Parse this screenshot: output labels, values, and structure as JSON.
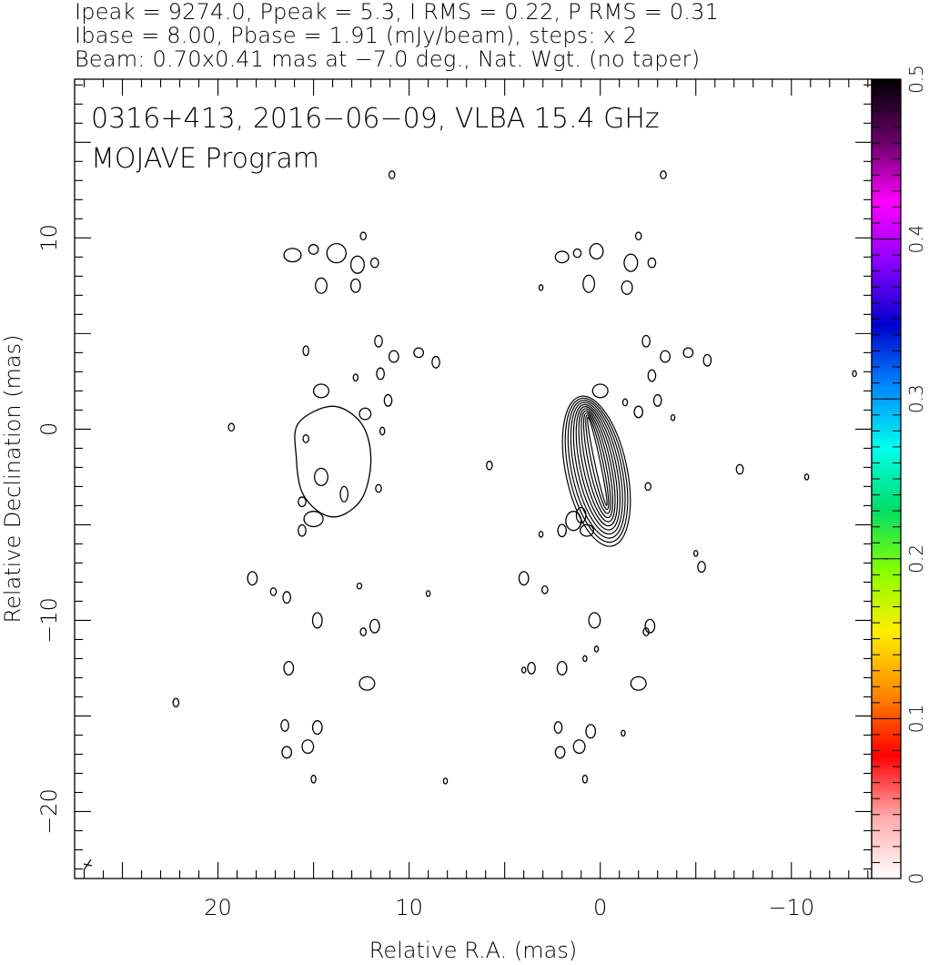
{
  "header": {
    "line1": "Ipeak = 9274.0, Ppeak = 5.3, I RMS = 0.22, P RMS = 0.31",
    "line2": "Ibase = 8.00, Pbase = 1.91 (mJy/beam), steps: x 2",
    "line3": "Beam: 0.70x0.41 mas at −7.0 deg., Nat. Wgt. (no taper)"
  },
  "chart_data": {
    "type": "contour",
    "annotation_line1": "0316+413, 2016−06−09, VLBA 15.4 GHz",
    "annotation_line2": "MOJAVE Program",
    "xlabel": "Relative R.A. (mas)",
    "ylabel": "Relative Declination (mas)",
    "xlim": [
      27.5,
      -14.2
    ],
    "ylim": [
      -23.5,
      18.3
    ],
    "x_ticks": [
      20,
      10,
      0,
      -10
    ],
    "x_tick_labels": [
      "20",
      "10",
      "0",
      "−10"
    ],
    "y_ticks": [
      10,
      0,
      -10,
      -20
    ],
    "y_tick_labels": [
      "10",
      "0",
      "−10",
      "−20"
    ],
    "colorbar": {
      "range": [
        0,
        0.5
      ],
      "ticks": [
        0,
        0.1,
        0.2,
        0.3,
        0.4,
        0.5
      ],
      "tick_labels": [
        "0",
        "0.1",
        "0.2",
        "0.3",
        "0.4",
        "0.5"
      ],
      "colors": [
        "#ffffff",
        "#ffaaaa",
        "#ff0000",
        "#ff8800",
        "#ffee00",
        "#88ff00",
        "#00dd66",
        "#00ffee",
        "#0088ff",
        "#0000cc",
        "#8800ff",
        "#ff00ff",
        "#660066",
        "#000000"
      ]
    },
    "core": {
      "x": 0.2,
      "y": -2.2,
      "a": 1.6,
      "b": 4.0,
      "angle": -12,
      "levels": 11
    },
    "left_ghost_outer": [
      [
        15.8,
        0.3
      ],
      [
        14.0,
        1.2
      ],
      [
        12.5,
        0.3
      ],
      [
        12.0,
        -1.5
      ],
      [
        12.4,
        -3.5
      ],
      [
        13.5,
        -4.5
      ],
      [
        14.6,
        -4.4
      ],
      [
        15.6,
        -3.3
      ],
      [
        15.9,
        -1.5
      ]
    ],
    "blobs": [
      [
        16.1,
        9.1,
        0.45,
        0.35
      ],
      [
        15.0,
        9.4,
        0.25,
        0.25
      ],
      [
        13.8,
        9.2,
        0.5,
        0.5
      ],
      [
        12.7,
        8.6,
        0.35,
        0.45
      ],
      [
        11.8,
        8.7,
        0.2,
        0.25
      ],
      [
        12.4,
        10.1,
        0.15,
        0.2
      ],
      [
        14.6,
        7.5,
        0.3,
        0.4
      ],
      [
        12.8,
        7.5,
        0.25,
        0.35
      ],
      [
        11.6,
        4.6,
        0.2,
        0.3
      ],
      [
        10.8,
        3.8,
        0.25,
        0.3
      ],
      [
        9.5,
        4.0,
        0.25,
        0.25
      ],
      [
        8.6,
        3.5,
        0.2,
        0.3
      ],
      [
        14.6,
        2.0,
        0.4,
        0.35
      ],
      [
        11.5,
        2.9,
        0.2,
        0.3
      ],
      [
        11.1,
        1.5,
        0.2,
        0.3
      ],
      [
        12.3,
        0.8,
        0.3,
        0.3
      ],
      [
        15.4,
        4.1,
        0.15,
        0.25
      ],
      [
        15.4,
        -0.5,
        0.15,
        0.2
      ],
      [
        14.6,
        -2.5,
        0.35,
        0.45
      ],
      [
        13.4,
        -3.4,
        0.2,
        0.4
      ],
      [
        11.6,
        -3.1,
        0.15,
        0.2
      ],
      [
        15.0,
        -4.7,
        0.5,
        0.4
      ],
      [
        15.6,
        -3.8,
        0.2,
        0.25
      ],
      [
        15.6,
        -5.3,
        0.2,
        0.3
      ],
      [
        19.3,
        0.1,
        0.15,
        0.2
      ],
      [
        18.2,
        -7.8,
        0.25,
        0.35
      ],
      [
        17.1,
        -8.5,
        0.15,
        0.2
      ],
      [
        16.4,
        -8.8,
        0.2,
        0.3
      ],
      [
        14.8,
        -10.0,
        0.25,
        0.4
      ],
      [
        12.4,
        -10.6,
        0.15,
        0.2
      ],
      [
        11.8,
        -10.3,
        0.25,
        0.35
      ],
      [
        16.3,
        -12.5,
        0.25,
        0.35
      ],
      [
        12.2,
        -13.3,
        0.4,
        0.35
      ],
      [
        16.5,
        -15.5,
        0.2,
        0.3
      ],
      [
        14.8,
        -15.6,
        0.25,
        0.35
      ],
      [
        16.4,
        -16.9,
        0.25,
        0.3
      ],
      [
        15.3,
        -16.6,
        0.3,
        0.35
      ],
      [
        15.0,
        -18.3,
        0.12,
        0.2
      ],
      [
        22.2,
        -14.3,
        0.15,
        0.22
      ],
      [
        10.9,
        13.3,
        0.15,
        0.2
      ],
      [
        9.0,
        -8.6,
        0.1,
        0.15
      ],
      [
        8.1,
        -18.4,
        0.1,
        0.15
      ],
      [
        11.4,
        -0.1,
        0.12,
        0.2
      ],
      [
        12.8,
        2.7,
        0.12,
        0.18
      ],
      [
        12.6,
        -8.2,
        0.12,
        0.15
      ],
      [
        2.0,
        9.0,
        0.35,
        0.3
      ],
      [
        1.2,
        9.2,
        0.2,
        0.22
      ],
      [
        0.2,
        9.3,
        0.35,
        0.4
      ],
      [
        -1.6,
        8.7,
        0.35,
        0.45
      ],
      [
        -2.7,
        8.7,
        0.2,
        0.25
      ],
      [
        -2.0,
        10.1,
        0.15,
        0.2
      ],
      [
        0.6,
        7.6,
        0.3,
        0.45
      ],
      [
        -1.4,
        7.4,
        0.28,
        0.35
      ],
      [
        3.1,
        7.4,
        0.1,
        0.15
      ],
      [
        -2.4,
        4.6,
        0.2,
        0.3
      ],
      [
        -3.4,
        3.8,
        0.25,
        0.3
      ],
      [
        -4.6,
        4.0,
        0.25,
        0.25
      ],
      [
        -5.6,
        3.6,
        0.2,
        0.3
      ],
      [
        0.0,
        2.0,
        0.4,
        0.35
      ],
      [
        -2.7,
        2.8,
        0.2,
        0.3
      ],
      [
        -3.0,
        1.5,
        0.2,
        0.3
      ],
      [
        -2.0,
        0.9,
        0.22,
        0.3
      ],
      [
        -1.3,
        1.4,
        0.12,
        0.18
      ],
      [
        -3.8,
        0.6,
        0.1,
        0.15
      ],
      [
        -2.5,
        -3.0,
        0.15,
        0.2
      ],
      [
        2.0,
        -5.3,
        0.22,
        0.32
      ],
      [
        3.1,
        -5.5,
        0.1,
        0.15
      ],
      [
        4.0,
        -7.8,
        0.25,
        0.35
      ],
      [
        2.9,
        -8.4,
        0.15,
        0.2
      ],
      [
        0.3,
        -10.0,
        0.3,
        0.4
      ],
      [
        -2.4,
        -10.6,
        0.15,
        0.2
      ],
      [
        -2.6,
        -10.3,
        0.25,
        0.35
      ],
      [
        3.6,
        -12.5,
        0.2,
        0.3
      ],
      [
        2.0,
        -12.5,
        0.25,
        0.35
      ],
      [
        -2.0,
        -13.3,
        0.4,
        0.35
      ],
      [
        2.2,
        -15.6,
        0.2,
        0.3
      ],
      [
        0.5,
        -15.8,
        0.25,
        0.35
      ],
      [
        2.1,
        -16.9,
        0.25,
        0.3
      ],
      [
        1.1,
        -16.6,
        0.3,
        0.35
      ],
      [
        0.8,
        -18.3,
        0.12,
        0.2
      ],
      [
        -3.3,
        13.3,
        0.15,
        0.2
      ],
      [
        -7.3,
        -2.1,
        0.18,
        0.25
      ],
      [
        -10.8,
        -2.5,
        0.1,
        0.15
      ],
      [
        5.8,
        -1.9,
        0.15,
        0.22
      ],
      [
        -5.3,
        -7.2,
        0.2,
        0.28
      ],
      [
        -5.0,
        -6.5,
        0.1,
        0.15
      ],
      [
        -13.3,
        2.9,
        0.1,
        0.15
      ],
      [
        4.0,
        -12.6,
        0.1,
        0.15
      ],
      [
        0.2,
        -11.5,
        0.1,
        0.15
      ],
      [
        -1.2,
        -15.9,
        0.1,
        0.15
      ],
      [
        0.8,
        -12.0,
        0.1,
        0.15
      ],
      [
        1.0,
        -4.5,
        0.25,
        0.4
      ],
      [
        1.4,
        -4.8,
        0.4,
        0.5
      ],
      [
        0.7,
        -5.3,
        0.35,
        0.3
      ]
    ]
  }
}
